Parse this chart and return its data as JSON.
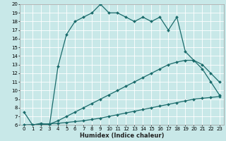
{
  "xlabel": "Humidex (Indice chaleur)",
  "ylabel": "",
  "bg_color": "#c8e8e8",
  "line_color": "#1a6b6b",
  "grid_color": "#ffffff",
  "xlim": [
    -0.5,
    23.5
  ],
  "ylim": [
    6,
    20
  ],
  "xticks": [
    0,
    1,
    2,
    3,
    4,
    5,
    6,
    7,
    8,
    9,
    10,
    11,
    12,
    13,
    14,
    15,
    16,
    17,
    18,
    19,
    20,
    21,
    22,
    23
  ],
  "yticks": [
    6,
    7,
    8,
    9,
    10,
    11,
    12,
    13,
    14,
    15,
    16,
    17,
    18,
    19,
    20
  ],
  "curve1_x": [
    0,
    1,
    2,
    3,
    4,
    5,
    6,
    7,
    8,
    9,
    10,
    11,
    12,
    13,
    14,
    15,
    16,
    17,
    18,
    19,
    20,
    21,
    22,
    23
  ],
  "curve1_y": [
    7.5,
    6.0,
    6.2,
    6.0,
    12.8,
    16.5,
    18.0,
    18.5,
    19.0,
    20.0,
    19.0,
    19.0,
    18.5,
    18.0,
    18.5,
    18.0,
    18.5,
    17.0,
    18.5,
    14.5,
    13.5,
    12.5,
    11.0,
    9.5
  ],
  "curve2_x": [
    0,
    3,
    4,
    5,
    6,
    7,
    8,
    9,
    10,
    11,
    12,
    13,
    14,
    15,
    16,
    17,
    18,
    19,
    20,
    21,
    22,
    23
  ],
  "curve2_y": [
    6.0,
    6.1,
    6.5,
    7.0,
    7.5,
    8.0,
    8.5,
    9.0,
    9.5,
    10.0,
    10.5,
    11.0,
    11.5,
    12.0,
    12.5,
    13.0,
    13.3,
    13.5,
    13.5,
    13.0,
    12.0,
    11.0
  ],
  "curve3_x": [
    0,
    1,
    2,
    3,
    4,
    5,
    6,
    7,
    8,
    9,
    10,
    11,
    12,
    13,
    14,
    15,
    16,
    17,
    18,
    19,
    20,
    21,
    22,
    23
  ],
  "curve3_y": [
    6.0,
    6.05,
    6.1,
    6.15,
    6.2,
    6.3,
    6.4,
    6.5,
    6.65,
    6.8,
    7.0,
    7.2,
    7.4,
    7.6,
    7.8,
    8.0,
    8.2,
    8.4,
    8.6,
    8.8,
    9.0,
    9.1,
    9.2,
    9.3
  ],
  "xlabel_fontsize": 6,
  "tick_fontsize": 5,
  "linewidth": 0.9,
  "markersize": 2.0
}
